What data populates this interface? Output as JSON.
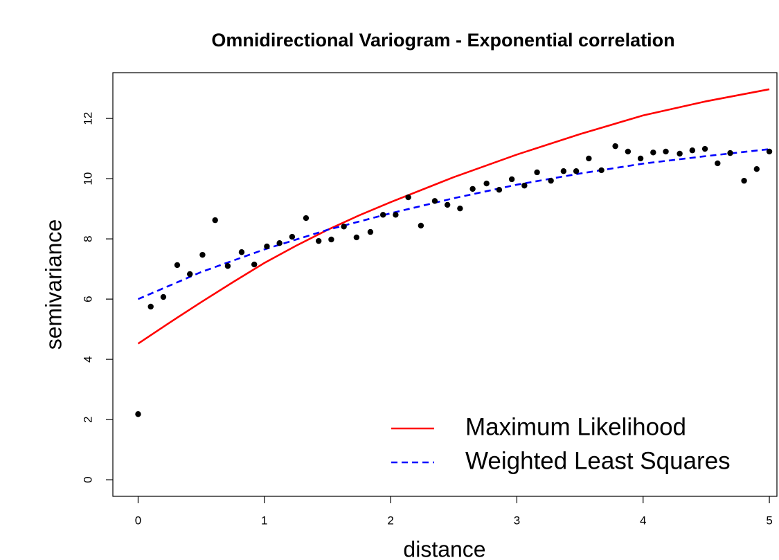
{
  "chart_data": {
    "type": "scatter",
    "title": "Omnidirectional Variogram - Exponential correlation",
    "x_label": "distance",
    "y_label": "semivariance",
    "xlim": [
      -0.2,
      5.06
    ],
    "ylim": [
      -0.55,
      13.52
    ],
    "xticks": [
      0,
      1,
      2,
      3,
      4,
      5
    ],
    "yticks": [
      0,
      2,
      4,
      6,
      8,
      10,
      12
    ],
    "points": {
      "color": "#000000",
      "x": [
        0,
        0.1,
        0.2,
        0.31,
        0.41,
        0.51,
        0.61,
        0.71,
        0.82,
        0.92,
        1.02,
        1.12,
        1.22,
        1.33,
        1.43,
        1.53,
        1.63,
        1.73,
        1.84,
        1.94,
        2.04,
        2.14,
        2.24,
        2.35,
        2.45,
        2.55,
        2.65,
        2.76,
        2.86,
        2.96,
        3.06,
        3.16,
        3.27,
        3.37,
        3.47,
        3.57,
        3.67,
        3.78,
        3.88,
        3.98,
        4.08,
        4.18,
        4.29,
        4.39,
        4.49,
        4.59,
        4.69,
        4.8,
        4.9,
        5.0
      ],
      "values": [
        2.18,
        5.75,
        6.07,
        7.13,
        6.83,
        7.47,
        8.62,
        7.1,
        7.56,
        7.15,
        7.75,
        7.86,
        8.07,
        8.69,
        7.93,
        7.98,
        8.41,
        8.05,
        8.23,
        8.8,
        8.8,
        9.38,
        8.44,
        9.26,
        9.13,
        9.01,
        9.66,
        9.84,
        9.63,
        9.98,
        9.77,
        10.21,
        9.93,
        10.25,
        10.25,
        10.67,
        10.28,
        11.08,
        10.9,
        10.67,
        10.87,
        10.9,
        10.83,
        10.94,
        10.99,
        10.51,
        10.85,
        9.93,
        10.32,
        10.9
      ]
    },
    "series": [
      {
        "name": "Maximum Likelihood",
        "color": "#ff0000",
        "line_style": "solid",
        "x": [
          0,
          0.25,
          0.5,
          0.75,
          1,
          1.25,
          1.5,
          1.75,
          2,
          2.5,
          3,
          3.5,
          4,
          4.5,
          5
        ],
        "values": [
          4.52,
          5.22,
          5.9,
          6.56,
          7.2,
          7.77,
          8.3,
          8.78,
          9.22,
          10.05,
          10.8,
          11.48,
          12.1,
          12.57,
          12.97
        ]
      },
      {
        "name": "Weighted Least Squares",
        "color": "#0000ff",
        "line_style": "dashed",
        "x": [
          0,
          0.5,
          1,
          1.5,
          2,
          2.5,
          3,
          3.5,
          4,
          4.5,
          5
        ],
        "values": [
          6.0,
          6.9,
          7.65,
          8.3,
          8.85,
          9.35,
          9.8,
          10.17,
          10.5,
          10.75,
          10.98
        ]
      }
    ],
    "legend": "bottomright"
  }
}
